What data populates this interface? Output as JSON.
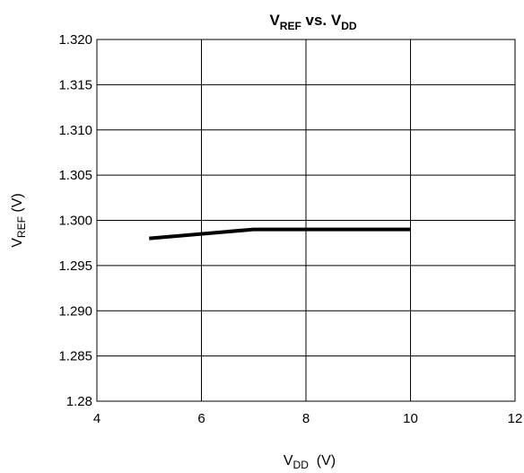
{
  "chart_data": {
    "type": "line",
    "title": {
      "base": "V",
      "sub1": "REF",
      "mid": " vs. V",
      "sub2": "DD"
    },
    "xlabel": {
      "base": "V",
      "sub": "DD",
      "unit": "  (V)"
    },
    "ylabel": {
      "base": "V",
      "sub": "REF",
      "unit": " (V)"
    },
    "xlim": [
      4,
      12
    ],
    "ylim": [
      1.28,
      1.32
    ],
    "x_ticks": [
      4,
      6,
      8,
      10,
      12
    ],
    "x_tick_labels": [
      "4",
      "6",
      "8",
      "10",
      "12"
    ],
    "y_ticks": [
      1.28,
      1.285,
      1.29,
      1.295,
      1.3,
      1.305,
      1.31,
      1.315,
      1.32
    ],
    "y_tick_labels": [
      "1.28",
      "1.285",
      "1.290",
      "1.295",
      "1.300",
      "1.305",
      "1.310",
      "1.315",
      "1.320"
    ],
    "grid": true,
    "line_color": "#000000",
    "series": [
      {
        "x": [
          5,
          7,
          10
        ],
        "y": [
          1.298,
          1.299,
          1.299
        ]
      }
    ]
  }
}
